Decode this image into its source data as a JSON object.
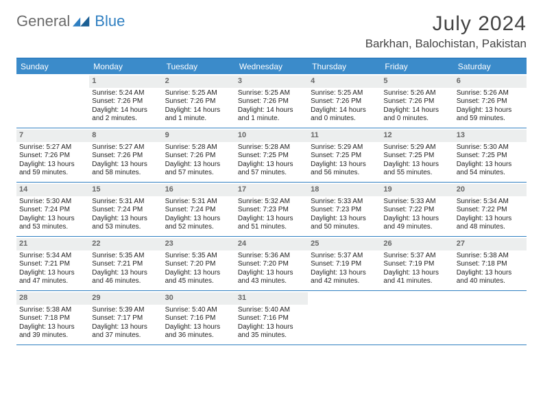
{
  "brand": {
    "part1": "General",
    "part2": "Blue"
  },
  "title": {
    "month": "July 2024",
    "location": "Barkhan, Balochistan, Pakistan"
  },
  "colors": {
    "accent": "#3b8bca",
    "rule": "#2f7fc1",
    "numbg": "#eceeee"
  },
  "day_labels": [
    "Sunday",
    "Monday",
    "Tuesday",
    "Wednesday",
    "Thursday",
    "Friday",
    "Saturday"
  ],
  "weeks": [
    [
      {
        "empty": true
      },
      {
        "n": "1",
        "l1": "Sunrise: 5:24 AM",
        "l2": "Sunset: 7:26 PM",
        "l3": "Daylight: 14 hours",
        "l4": "and 2 minutes."
      },
      {
        "n": "2",
        "l1": "Sunrise: 5:25 AM",
        "l2": "Sunset: 7:26 PM",
        "l3": "Daylight: 14 hours",
        "l4": "and 1 minute."
      },
      {
        "n": "3",
        "l1": "Sunrise: 5:25 AM",
        "l2": "Sunset: 7:26 PM",
        "l3": "Daylight: 14 hours",
        "l4": "and 1 minute."
      },
      {
        "n": "4",
        "l1": "Sunrise: 5:25 AM",
        "l2": "Sunset: 7:26 PM",
        "l3": "Daylight: 14 hours",
        "l4": "and 0 minutes."
      },
      {
        "n": "5",
        "l1": "Sunrise: 5:26 AM",
        "l2": "Sunset: 7:26 PM",
        "l3": "Daylight: 14 hours",
        "l4": "and 0 minutes."
      },
      {
        "n": "6",
        "l1": "Sunrise: 5:26 AM",
        "l2": "Sunset: 7:26 PM",
        "l3": "Daylight: 13 hours",
        "l4": "and 59 minutes."
      }
    ],
    [
      {
        "n": "7",
        "l1": "Sunrise: 5:27 AM",
        "l2": "Sunset: 7:26 PM",
        "l3": "Daylight: 13 hours",
        "l4": "and 59 minutes."
      },
      {
        "n": "8",
        "l1": "Sunrise: 5:27 AM",
        "l2": "Sunset: 7:26 PM",
        "l3": "Daylight: 13 hours",
        "l4": "and 58 minutes."
      },
      {
        "n": "9",
        "l1": "Sunrise: 5:28 AM",
        "l2": "Sunset: 7:26 PM",
        "l3": "Daylight: 13 hours",
        "l4": "and 57 minutes."
      },
      {
        "n": "10",
        "l1": "Sunrise: 5:28 AM",
        "l2": "Sunset: 7:25 PM",
        "l3": "Daylight: 13 hours",
        "l4": "and 57 minutes."
      },
      {
        "n": "11",
        "l1": "Sunrise: 5:29 AM",
        "l2": "Sunset: 7:25 PM",
        "l3": "Daylight: 13 hours",
        "l4": "and 56 minutes."
      },
      {
        "n": "12",
        "l1": "Sunrise: 5:29 AM",
        "l2": "Sunset: 7:25 PM",
        "l3": "Daylight: 13 hours",
        "l4": "and 55 minutes."
      },
      {
        "n": "13",
        "l1": "Sunrise: 5:30 AM",
        "l2": "Sunset: 7:25 PM",
        "l3": "Daylight: 13 hours",
        "l4": "and 54 minutes."
      }
    ],
    [
      {
        "n": "14",
        "l1": "Sunrise: 5:30 AM",
        "l2": "Sunset: 7:24 PM",
        "l3": "Daylight: 13 hours",
        "l4": "and 53 minutes."
      },
      {
        "n": "15",
        "l1": "Sunrise: 5:31 AM",
        "l2": "Sunset: 7:24 PM",
        "l3": "Daylight: 13 hours",
        "l4": "and 53 minutes."
      },
      {
        "n": "16",
        "l1": "Sunrise: 5:31 AM",
        "l2": "Sunset: 7:24 PM",
        "l3": "Daylight: 13 hours",
        "l4": "and 52 minutes."
      },
      {
        "n": "17",
        "l1": "Sunrise: 5:32 AM",
        "l2": "Sunset: 7:23 PM",
        "l3": "Daylight: 13 hours",
        "l4": "and 51 minutes."
      },
      {
        "n": "18",
        "l1": "Sunrise: 5:33 AM",
        "l2": "Sunset: 7:23 PM",
        "l3": "Daylight: 13 hours",
        "l4": "and 50 minutes."
      },
      {
        "n": "19",
        "l1": "Sunrise: 5:33 AM",
        "l2": "Sunset: 7:22 PM",
        "l3": "Daylight: 13 hours",
        "l4": "and 49 minutes."
      },
      {
        "n": "20",
        "l1": "Sunrise: 5:34 AM",
        "l2": "Sunset: 7:22 PM",
        "l3": "Daylight: 13 hours",
        "l4": "and 48 minutes."
      }
    ],
    [
      {
        "n": "21",
        "l1": "Sunrise: 5:34 AM",
        "l2": "Sunset: 7:21 PM",
        "l3": "Daylight: 13 hours",
        "l4": "and 47 minutes."
      },
      {
        "n": "22",
        "l1": "Sunrise: 5:35 AM",
        "l2": "Sunset: 7:21 PM",
        "l3": "Daylight: 13 hours",
        "l4": "and 46 minutes."
      },
      {
        "n": "23",
        "l1": "Sunrise: 5:35 AM",
        "l2": "Sunset: 7:20 PM",
        "l3": "Daylight: 13 hours",
        "l4": "and 45 minutes."
      },
      {
        "n": "24",
        "l1": "Sunrise: 5:36 AM",
        "l2": "Sunset: 7:20 PM",
        "l3": "Daylight: 13 hours",
        "l4": "and 43 minutes."
      },
      {
        "n": "25",
        "l1": "Sunrise: 5:37 AM",
        "l2": "Sunset: 7:19 PM",
        "l3": "Daylight: 13 hours",
        "l4": "and 42 minutes."
      },
      {
        "n": "26",
        "l1": "Sunrise: 5:37 AM",
        "l2": "Sunset: 7:19 PM",
        "l3": "Daylight: 13 hours",
        "l4": "and 41 minutes."
      },
      {
        "n": "27",
        "l1": "Sunrise: 5:38 AM",
        "l2": "Sunset: 7:18 PM",
        "l3": "Daylight: 13 hours",
        "l4": "and 40 minutes."
      }
    ],
    [
      {
        "n": "28",
        "l1": "Sunrise: 5:38 AM",
        "l2": "Sunset: 7:18 PM",
        "l3": "Daylight: 13 hours",
        "l4": "and 39 minutes."
      },
      {
        "n": "29",
        "l1": "Sunrise: 5:39 AM",
        "l2": "Sunset: 7:17 PM",
        "l3": "Daylight: 13 hours",
        "l4": "and 37 minutes."
      },
      {
        "n": "30",
        "l1": "Sunrise: 5:40 AM",
        "l2": "Sunset: 7:16 PM",
        "l3": "Daylight: 13 hours",
        "l4": "and 36 minutes."
      },
      {
        "n": "31",
        "l1": "Sunrise: 5:40 AM",
        "l2": "Sunset: 7:16 PM",
        "l3": "Daylight: 13 hours",
        "l4": "and 35 minutes."
      },
      {
        "empty": true
      },
      {
        "empty": true
      },
      {
        "empty": true
      }
    ]
  ]
}
